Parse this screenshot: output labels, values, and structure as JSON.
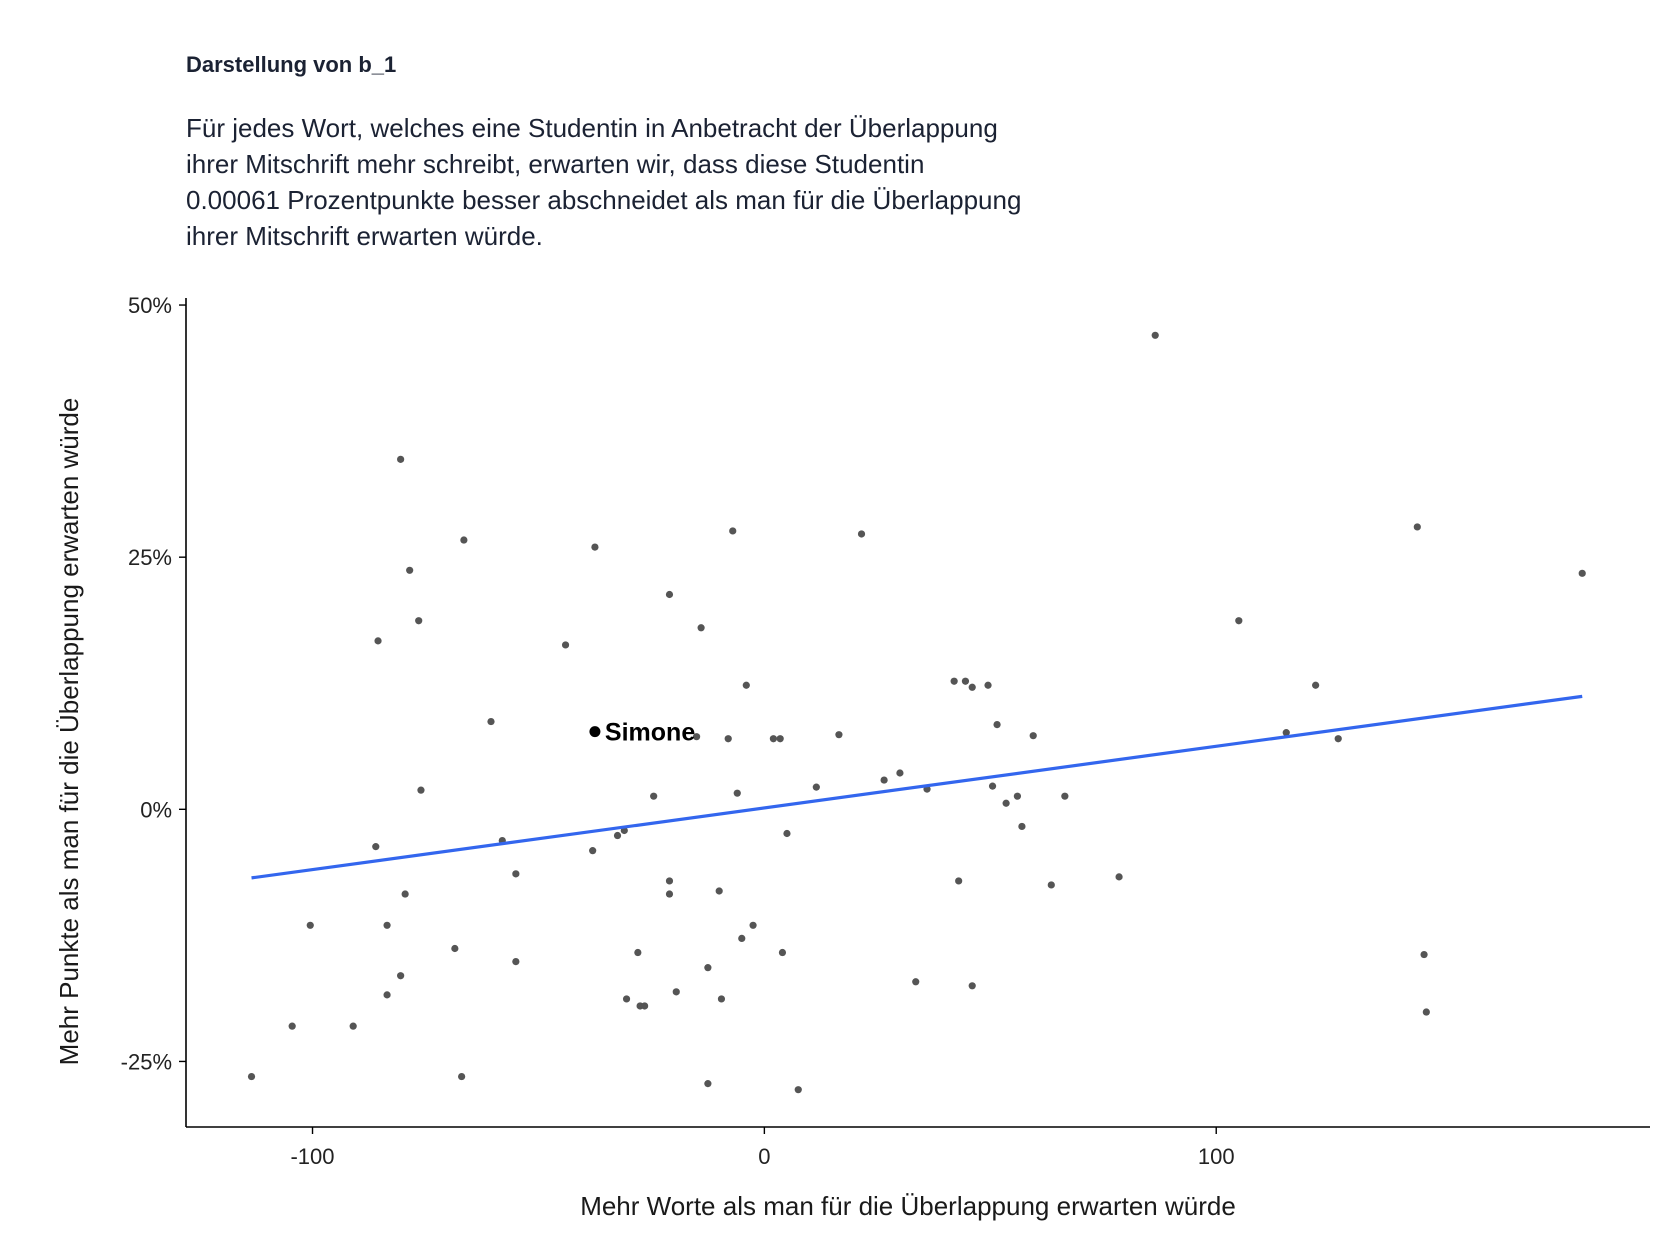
{
  "chart_data": {
    "type": "scatter",
    "title": "Darstellung von b_1",
    "subtitle_lines": [
      "Für jedes Wort, welches eine Studentin in Anbetracht der Überlappung",
      "ihrer Mitschrift mehr schreibt, erwarten wir, dass diese Studentin",
      "0.00061 Prozentpunkte besser abschneidet als man für die Überlappung",
      "ihrer Mitschrift erwarten würde."
    ],
    "xlabel": "Mehr Worte als man für die Überlappung erwarten würde",
    "ylabel": "Mehr Punkte als man für die Überlappung erwarten würde",
    "xlim": [
      -128,
      196
    ],
    "ylim": [
      -0.315,
      0.505
    ],
    "x_ticks": [
      -100,
      0,
      100
    ],
    "x_tick_labels": [
      "-100",
      "0",
      "100"
    ],
    "y_ticks": [
      0.5,
      0.25,
      0,
      -0.25
    ],
    "y_tick_labels": [
      "50%",
      "25%",
      "0%",
      "-25%"
    ],
    "grid": false,
    "points": [
      {
        "x": 86.5,
        "y": 0.47
      },
      {
        "x": -80.5,
        "y": 0.347
      },
      {
        "x": -66.5,
        "y": 0.267
      },
      {
        "x": -37.5,
        "y": 0.26
      },
      {
        "x": -7,
        "y": 0.276
      },
      {
        "x": 21.5,
        "y": 0.273
      },
      {
        "x": -78.5,
        "y": 0.237
      },
      {
        "x": -76.5,
        "y": 0.187
      },
      {
        "x": -21,
        "y": 0.213
      },
      {
        "x": -14,
        "y": 0.18
      },
      {
        "x": -85.5,
        "y": 0.167
      },
      {
        "x": -44,
        "y": 0.163
      },
      {
        "x": -4,
        "y": 0.123
      },
      {
        "x": 42,
        "y": 0.127
      },
      {
        "x": 44.5,
        "y": 0.127
      },
      {
        "x": 46,
        "y": 0.121
      },
      {
        "x": 49.5,
        "y": 0.123
      },
      {
        "x": 51.5,
        "y": 0.084
      },
      {
        "x": -60.5,
        "y": 0.087
      },
      {
        "x": -15,
        "y": 0.072
      },
      {
        "x": -8,
        "y": 0.07
      },
      {
        "x": 2,
        "y": 0.07
      },
      {
        "x": 3.5,
        "y": 0.07
      },
      {
        "x": 16.5,
        "y": 0.074
      },
      {
        "x": 59.5,
        "y": 0.073
      },
      {
        "x": -76,
        "y": 0.019
      },
      {
        "x": -24.5,
        "y": 0.013
      },
      {
        "x": -6,
        "y": 0.016
      },
      {
        "x": 11.5,
        "y": 0.022
      },
      {
        "x": 26.5,
        "y": 0.029
      },
      {
        "x": 30,
        "y": 0.036
      },
      {
        "x": 36,
        "y": 0.02
      },
      {
        "x": 50.5,
        "y": 0.023
      },
      {
        "x": 53.5,
        "y": 0.006
      },
      {
        "x": 56,
        "y": 0.013
      },
      {
        "x": 57,
        "y": -0.017
      },
      {
        "x": 66.5,
        "y": 0.013
      },
      {
        "x": -86,
        "y": -0.037
      },
      {
        "x": -58,
        "y": -0.031
      },
      {
        "x": -38,
        "y": -0.041
      },
      {
        "x": -32.5,
        "y": -0.026
      },
      {
        "x": -31,
        "y": -0.021
      },
      {
        "x": 5,
        "y": -0.024
      },
      {
        "x": -55,
        "y": -0.064
      },
      {
        "x": -21,
        "y": -0.071
      },
      {
        "x": -21,
        "y": -0.084
      },
      {
        "x": -10,
        "y": -0.081
      },
      {
        "x": 43,
        "y": -0.071
      },
      {
        "x": 63.5,
        "y": -0.075
      },
      {
        "x": 78.5,
        "y": -0.067
      },
      {
        "x": -79.5,
        "y": -0.084
      },
      {
        "x": -100.5,
        "y": -0.115
      },
      {
        "x": -83.5,
        "y": -0.115
      },
      {
        "x": -2.5,
        "y": -0.115
      },
      {
        "x": -5,
        "y": -0.128
      },
      {
        "x": -68.5,
        "y": -0.138
      },
      {
        "x": -28,
        "y": -0.142
      },
      {
        "x": 4,
        "y": -0.142
      },
      {
        "x": -55,
        "y": -0.151
      },
      {
        "x": -12.5,
        "y": -0.157
      },
      {
        "x": -80.5,
        "y": -0.165
      },
      {
        "x": 33.5,
        "y": -0.171
      },
      {
        "x": 46,
        "y": -0.175
      },
      {
        "x": 146,
        "y": -0.144
      },
      {
        "x": -83.5,
        "y": -0.184
      },
      {
        "x": -30.5,
        "y": -0.188
      },
      {
        "x": -27.5,
        "y": -0.195
      },
      {
        "x": -26.5,
        "y": -0.195
      },
      {
        "x": -19.5,
        "y": -0.181
      },
      {
        "x": -9.5,
        "y": -0.188
      },
      {
        "x": -104.5,
        "y": -0.215
      },
      {
        "x": -91,
        "y": -0.215
      },
      {
        "x": -113.5,
        "y": -0.265
      },
      {
        "x": -67,
        "y": -0.265
      },
      {
        "x": -12.5,
        "y": -0.272
      },
      {
        "x": 7.5,
        "y": -0.278
      },
      {
        "x": 105,
        "y": 0.187
      },
      {
        "x": 115.5,
        "y": 0.076
      },
      {
        "x": 122,
        "y": 0.123
      },
      {
        "x": 127,
        "y": 0.07
      },
      {
        "x": 144.5,
        "y": 0.28
      },
      {
        "x": 146.5,
        "y": -0.201
      },
      {
        "x": 181,
        "y": 0.234
      }
    ],
    "highlight": {
      "label": "Simone",
      "x": -37.5,
      "y": 0.077
    },
    "trend_line": {
      "x": [
        -113.5,
        181
      ],
      "y": [
        -0.068,
        0.112
      ],
      "color": "#3366ee"
    },
    "colors": {
      "points": "#555555",
      "highlight": "#000000",
      "axis": "#000000"
    }
  }
}
